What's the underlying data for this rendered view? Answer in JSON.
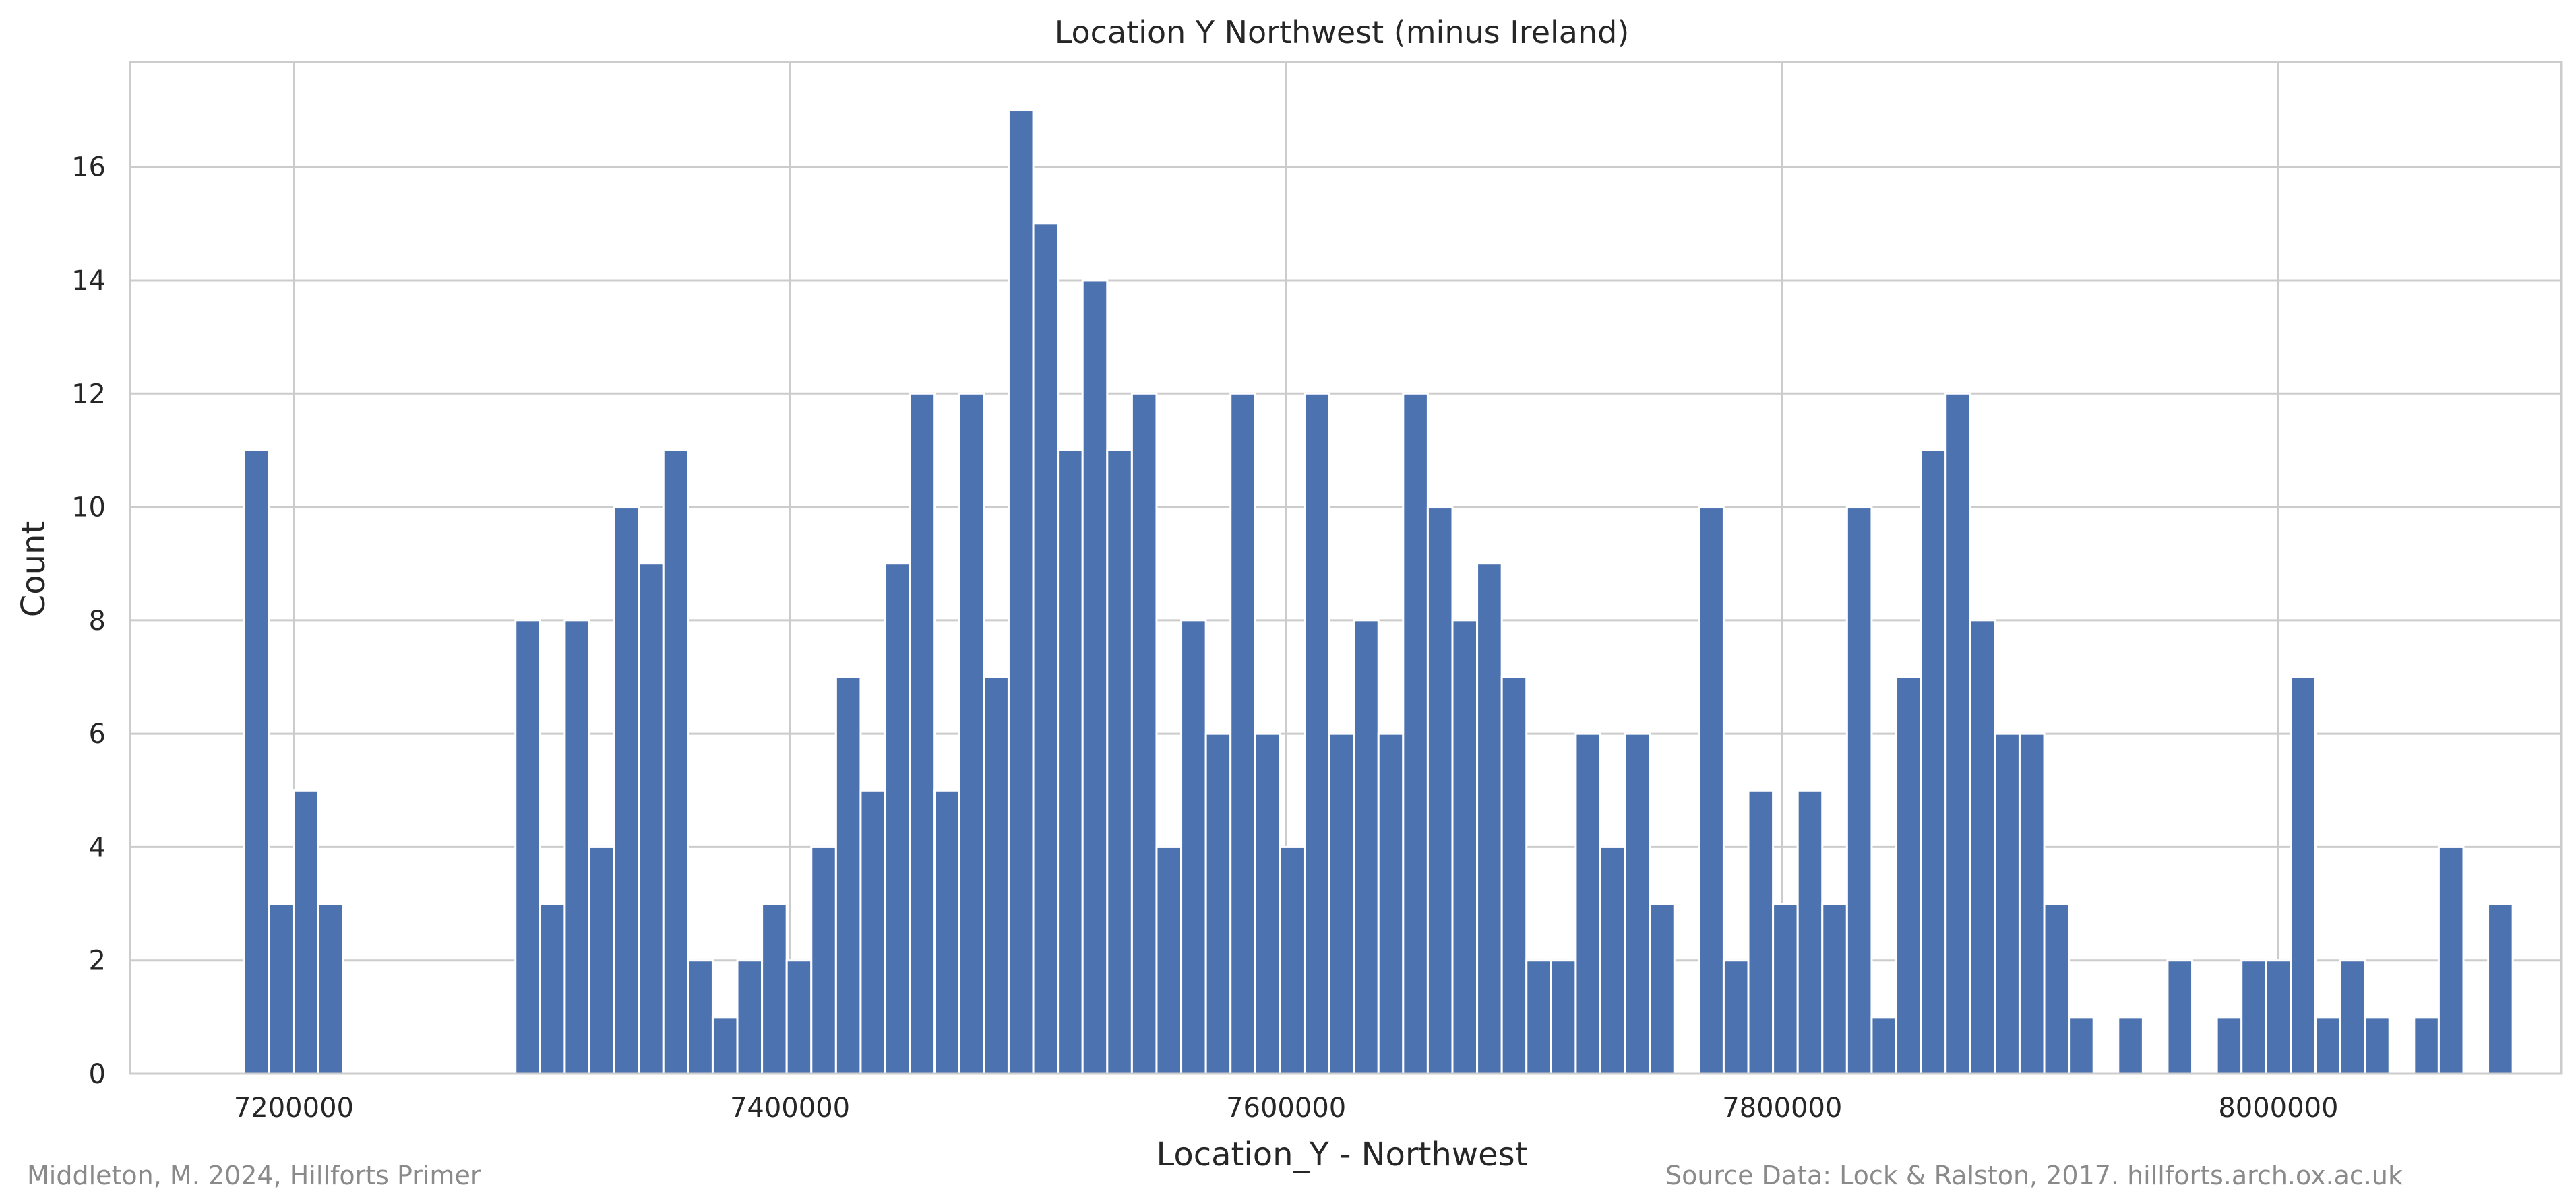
{
  "chart_data": {
    "type": "bar",
    "title": "Location Y   Northwest (minus Ireland)",
    "xlabel": "Location_Y - Northwest",
    "ylabel": "Count",
    "xlim": [
      7134000,
      8114000
    ],
    "ylim": [
      0,
      17.85
    ],
    "x_ticks": [
      "7200000",
      "7400000",
      "7600000",
      "7800000",
      "8000000"
    ],
    "y_ticks": [
      "0",
      "2",
      "4",
      "6",
      "8",
      "10",
      "12",
      "14",
      "16"
    ],
    "bin_start": 7180000,
    "bin_width": 9940,
    "values": [
      11,
      3,
      5,
      3,
      0,
      0,
      0,
      0,
      0,
      0,
      0,
      8,
      3,
      8,
      4,
      10,
      9,
      11,
      2,
      1,
      2,
      3,
      2,
      4,
      7,
      5,
      9,
      12,
      5,
      12,
      7,
      17,
      15,
      11,
      14,
      11,
      12,
      4,
      8,
      6,
      12,
      6,
      4,
      12,
      6,
      8,
      6,
      12,
      10,
      8,
      9,
      7,
      2,
      2,
      6,
      4,
      6,
      3,
      0,
      10,
      2,
      5,
      3,
      5,
      3,
      10,
      1,
      7,
      11,
      12,
      8,
      6,
      6,
      3,
      1,
      0,
      1,
      0,
      2,
      0,
      1,
      2,
      2,
      7,
      1,
      2,
      1,
      0,
      1,
      4,
      0,
      3
    ],
    "grid": true,
    "bar_color": "#4c72b0"
  },
  "footer": {
    "left": "Middleton, M. 2024, Hillforts Primer",
    "right": "Source Data: Lock & Ralston, 2017. hillforts.arch.ox.ac.uk"
  }
}
